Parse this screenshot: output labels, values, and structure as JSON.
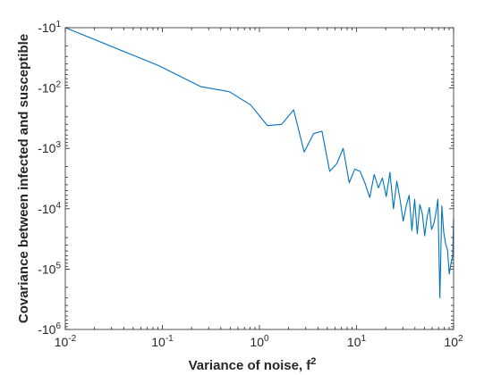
{
  "chart_data": {
    "type": "line",
    "title": "",
    "xlabel": "Variance of noise, f",
    "xlabel_superscript": "2",
    "ylabel": "Covariance between infected and susceptible",
    "xscale": "log",
    "yscale": "log",
    "xlim": [
      0.01,
      100
    ],
    "ylim": [
      -10,
      -1000000
    ],
    "grid": false,
    "x_ticks": [
      {
        "value": 0.01,
        "base": "10",
        "exp": "-2"
      },
      {
        "value": 0.1,
        "base": "10",
        "exp": "-1"
      },
      {
        "value": 1,
        "base": "10",
        "exp": "0"
      },
      {
        "value": 10,
        "base": "10",
        "exp": "1"
      },
      {
        "value": 100,
        "base": "10",
        "exp": "2"
      }
    ],
    "y_ticks": [
      {
        "value": -10,
        "base": "-10",
        "exp": "1"
      },
      {
        "value": -100,
        "base": "-10",
        "exp": "2"
      },
      {
        "value": -1000,
        "base": "-10",
        "exp": "3"
      },
      {
        "value": -10000,
        "base": "-10",
        "exp": "4"
      },
      {
        "value": -100000,
        "base": "-10",
        "exp": "5"
      },
      {
        "value": -1000000,
        "base": "-10",
        "exp": "6"
      }
    ],
    "series": [
      {
        "color": "#0072bd",
        "x": [
          0.01,
          0.09,
          0.25,
          0.49,
          0.81,
          1.21,
          1.69,
          2.25,
          2.89,
          3.61,
          4.41,
          5.29,
          6.25,
          7.29,
          8.41,
          9.61,
          10.89,
          12.25,
          13.69,
          15.21,
          16.81,
          18.49,
          20.25,
          22.09,
          24.01,
          26.01,
          28.09,
          30.25,
          32.49,
          34.81,
          37.21,
          39.69,
          42.25,
          44.89,
          47.61,
          50.41,
          53.29,
          56.25,
          59.29,
          62.41,
          65.61,
          68.89,
          72.25,
          75.69,
          79.21,
          82.81,
          86.49,
          90.25,
          94.09,
          98.01,
          100
        ],
        "y": [
          -10,
          -42,
          -95,
          -115,
          -190,
          -420,
          -400,
          -230,
          -1150,
          -570,
          -520,
          -2400,
          -1800,
          -1000,
          -3700,
          -2200,
          -2400,
          -3800,
          -6500,
          -2700,
          -4500,
          -3100,
          -6300,
          -2500,
          -10000,
          -3500,
          -7000,
          -16000,
          -9000,
          -6000,
          -23000,
          -7000,
          -26000,
          -8500,
          -12000,
          -28000,
          -14000,
          -9500,
          -22000,
          -18000,
          -12000,
          -7000,
          -300000,
          -9000,
          -25000,
          -38000,
          -48000,
          -120000,
          -80000,
          -60000,
          -15000
        ]
      }
    ]
  }
}
